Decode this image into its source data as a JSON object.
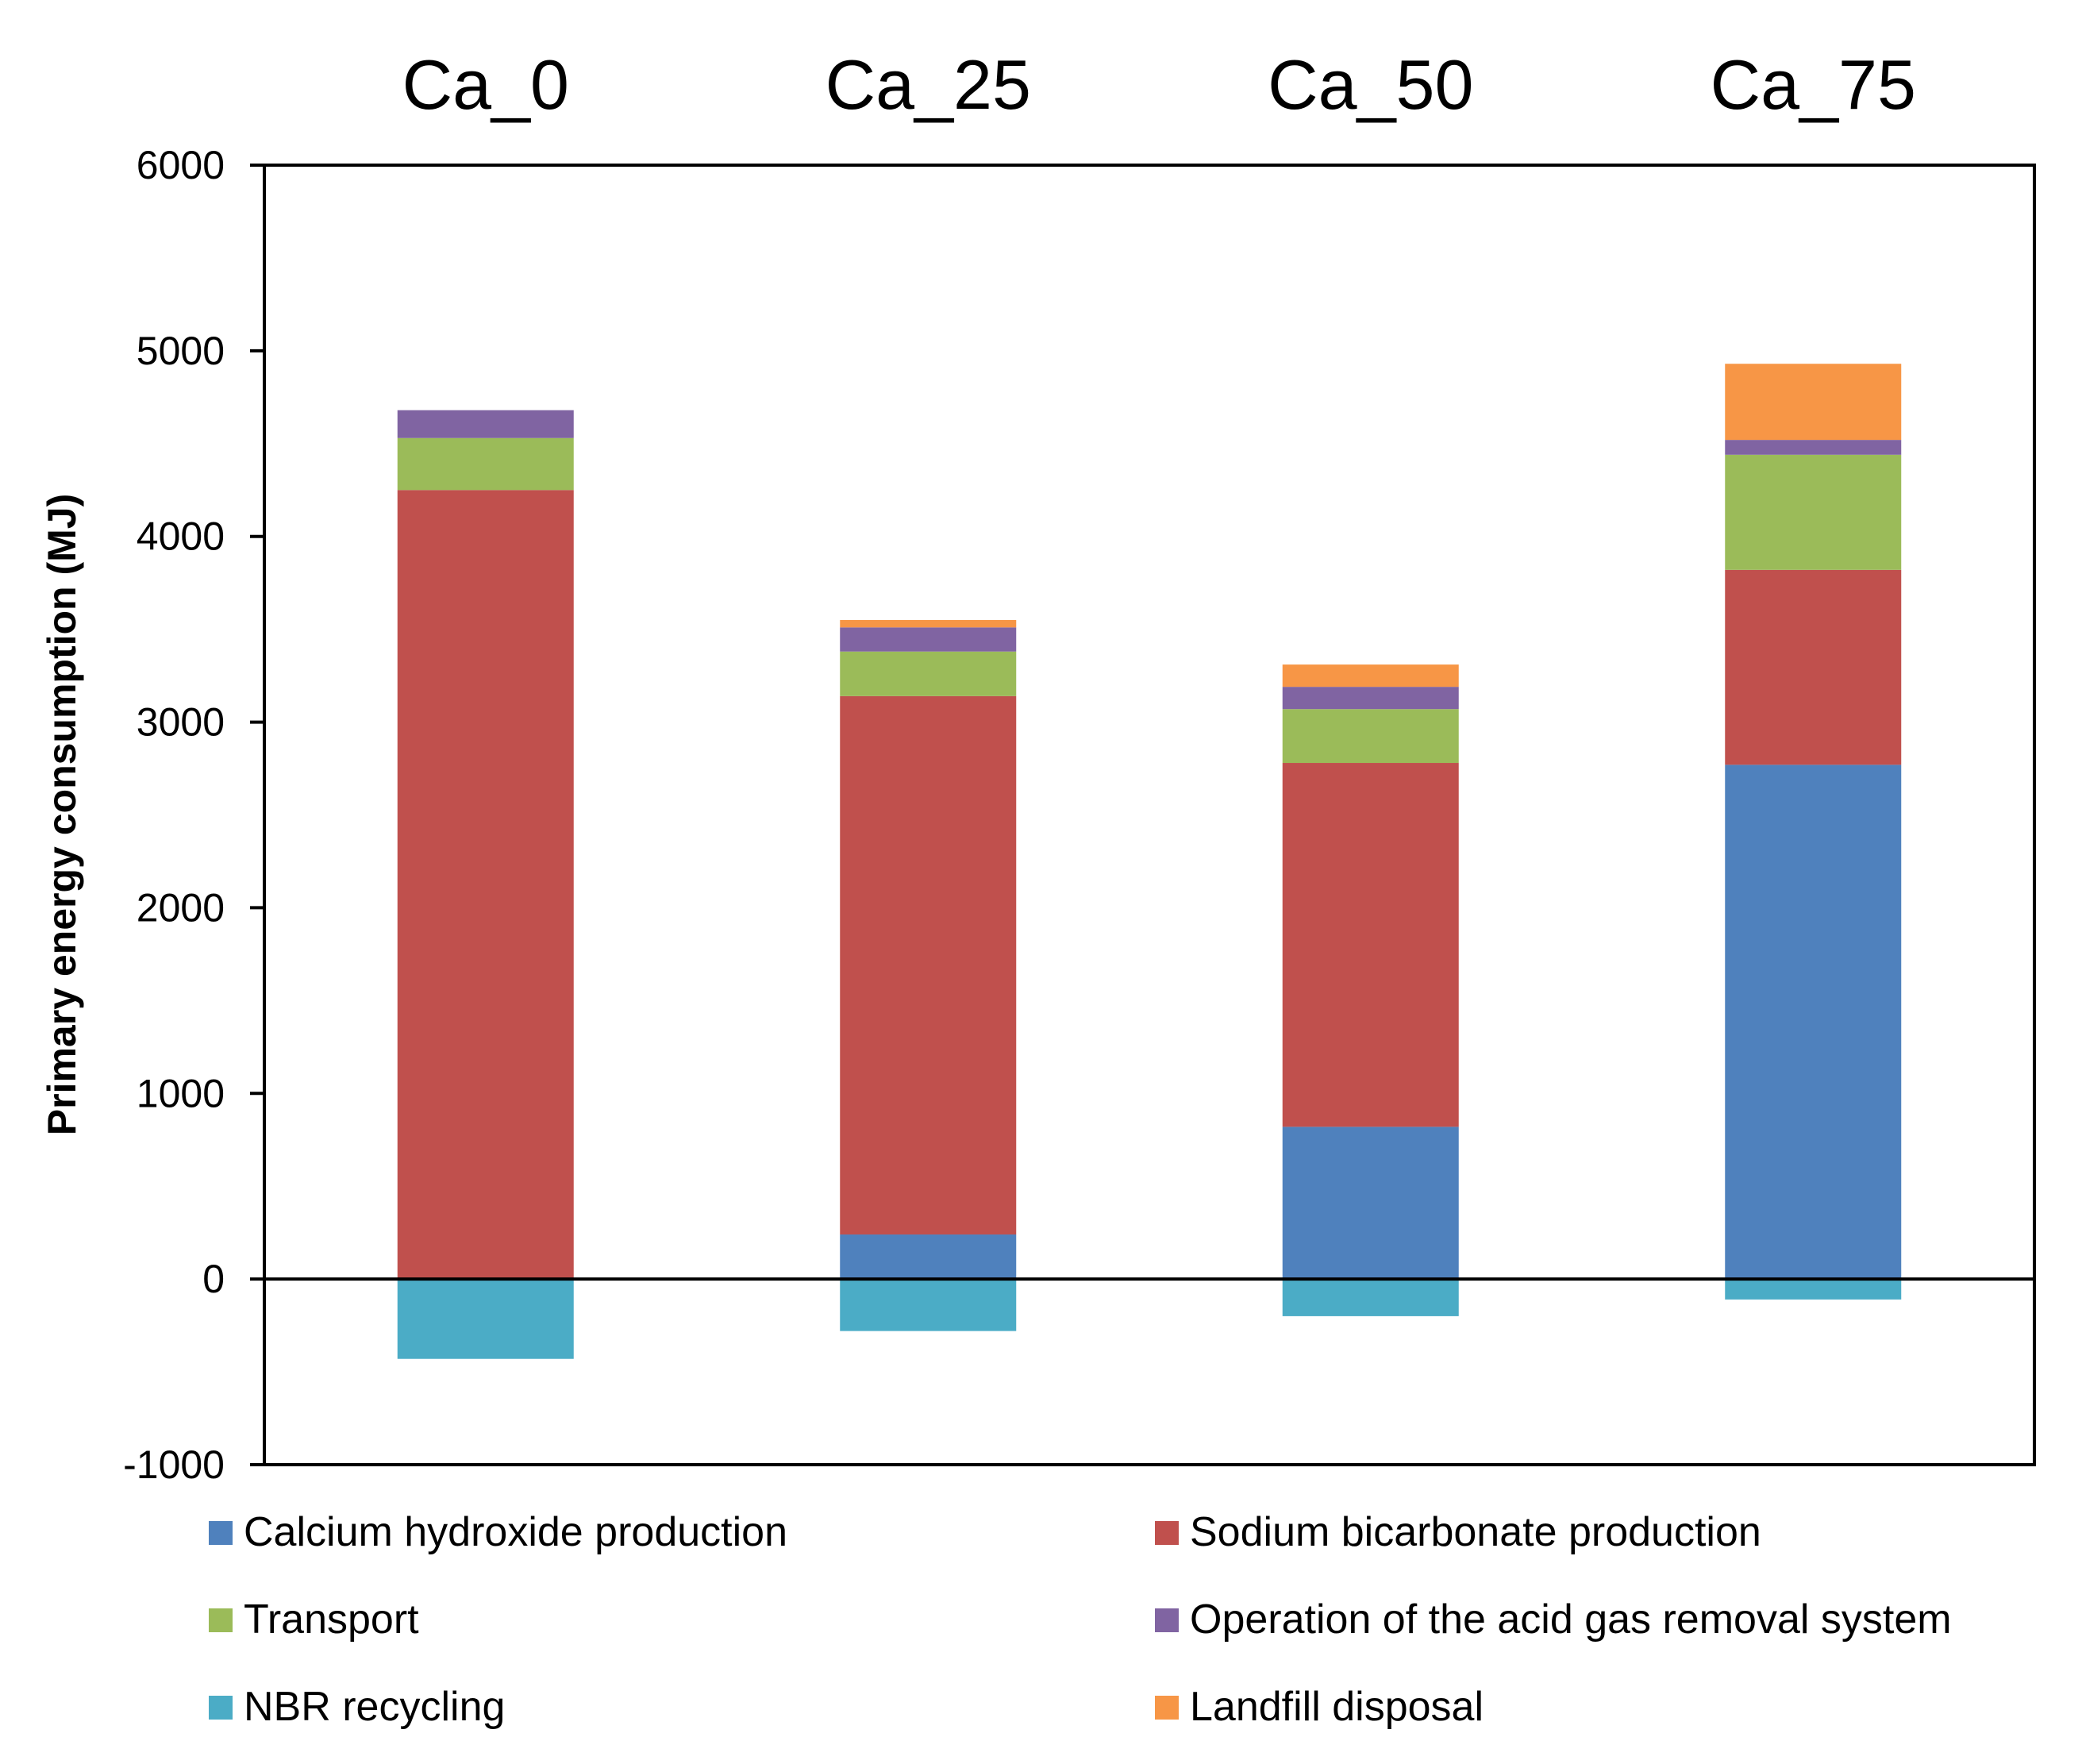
{
  "chart_data": {
    "type": "bar",
    "stacked": true,
    "title": "",
    "xlabel": "",
    "ylabel": "Primary energy consumption (MJ)",
    "categories": [
      "Ca_0",
      "Ca_25",
      "Ca_50",
      "Ca_75"
    ],
    "ylim": [
      -1000,
      6000
    ],
    "yticks": [
      "6000",
      "5000",
      "4000",
      "3000",
      "2000",
      "1000",
      "0",
      "-1000"
    ],
    "grid": false,
    "legend_position": "bottom",
    "series": [
      {
        "name": "Calcium hydroxide production",
        "color": "#4F81BD",
        "values": [
          0,
          240,
          820,
          2770
        ]
      },
      {
        "name": "Sodium bicarbonate production",
        "color": "#C0504D",
        "values": [
          4250,
          2900,
          1960,
          1050
        ]
      },
      {
        "name": "Transport",
        "color": "#9BBB59",
        "values": [
          280,
          240,
          290,
          620
        ]
      },
      {
        "name": "Operation of the acid gas removal system",
        "color": "#8064A2",
        "values": [
          150,
          130,
          120,
          80
        ]
      },
      {
        "name": "NBR recycling",
        "color": "#4BACC6",
        "values": [
          -430,
          -280,
          -200,
          -110
        ]
      },
      {
        "name": "Landfill disposal",
        "color": "#F79646",
        "values": [
          0,
          40,
          120,
          410
        ]
      }
    ]
  }
}
